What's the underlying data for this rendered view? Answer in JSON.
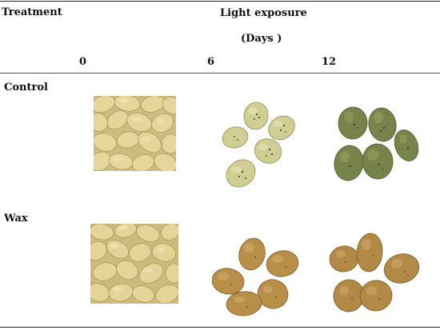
{
  "table": {
    "header": {
      "treatment": "Treatment",
      "light_exposure": "Light exposure",
      "days": "(Days )",
      "day_columns": [
        "0",
        "6",
        "12"
      ]
    },
    "rows": [
      {
        "label": "Control",
        "cells": [
          "yellow-potato-pile-photo",
          "light-green-potato-cluster-photo",
          "dark-green-potato-cluster-photo"
        ]
      },
      {
        "label": "Wax",
        "cells": [
          "yellow-potato-pile-photo",
          "golden-brown-potato-cluster-photo",
          "golden-brown-potato-cluster-photo"
        ]
      }
    ]
  },
  "colors": {
    "fresh_tuber": "#e3d394",
    "control_day6": "#c8c88c",
    "control_day12": "#6f7c43",
    "wax_tuber": "#b48a45",
    "rule": "#222222"
  }
}
